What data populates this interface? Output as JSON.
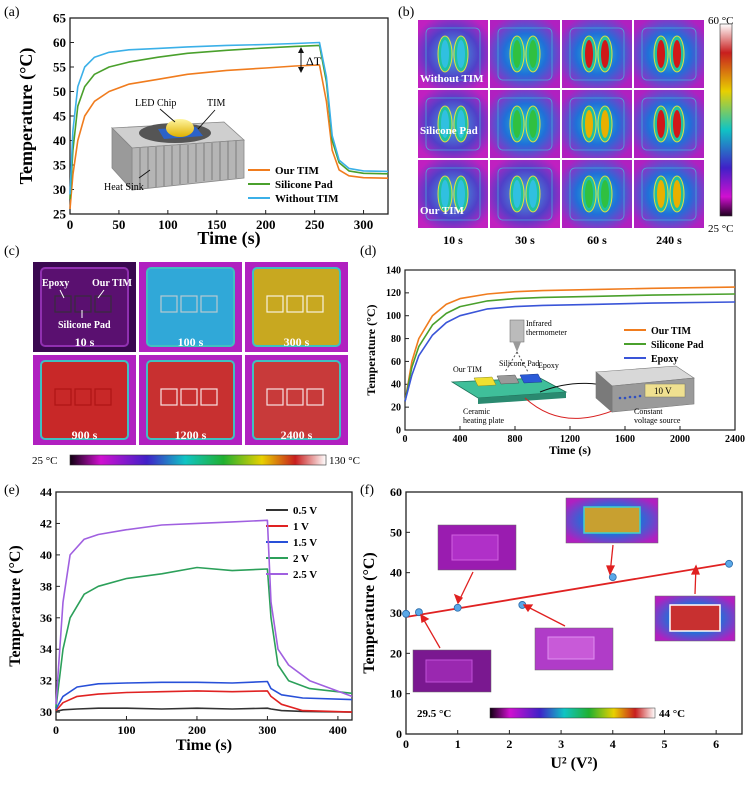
{
  "figure": {
    "panels": {
      "a": {
        "letter": "(a)"
      },
      "b": {
        "letter": "(b)"
      },
      "c": {
        "letter": "(c)"
      },
      "d": {
        "letter": "(d)"
      },
      "e": {
        "letter": "(e)"
      },
      "f": {
        "letter": "(f)"
      }
    },
    "annotations": {
      "a_delta_t": "ΔT",
      "a_led_chip": "LED Chip",
      "a_tim": "TIM",
      "a_heat_sink": "Heat Sink",
      "b_row_labels": [
        "Without TIM",
        "Silicone Pad",
        "Our TIM"
      ],
      "b_times": [
        "10 s",
        "30 s",
        "60 s",
        "240 s"
      ],
      "b_colorbar_max": "60 °C",
      "b_colorbar_min": "25 °C",
      "c_epoxy": "Epoxy",
      "c_our_tim": "Our TIM",
      "c_silicone_pad": "Silicone Pad",
      "c_times": [
        "10 s",
        "100 s",
        "300 s",
        "900 s",
        "1200 s",
        "2400 s"
      ],
      "c_colorbar_min": "25 °C",
      "c_colorbar_max": "130 °C",
      "d_infrared": "Infrared",
      "d_thermometer": "thermometer",
      "d_silicone_pad": "Silicone Pad",
      "d_epoxy": "Epoxy",
      "d_our_tim": "Our TIM",
      "d_ceramic": "Ceramic",
      "d_heating_plate": "heating plate",
      "d_voltage": "10 V",
      "d_constant": "Constant",
      "d_voltage_source": "voltage source",
      "f_colorbar_min": "29.5 °C",
      "f_colorbar_max": "44 °C"
    }
  },
  "chart_data": [
    {
      "id": "a",
      "type": "line",
      "xlabel": "Time (s)",
      "ylabel": "Temperature (°C)",
      "xlim": [
        0,
        325
      ],
      "ylim": [
        25,
        65
      ],
      "xticks": [
        0,
        50,
        100,
        150,
        200,
        250,
        300
      ],
      "yticks": [
        25,
        30,
        35,
        40,
        45,
        50,
        55,
        60,
        65
      ],
      "legend": "bottom-right",
      "series": [
        {
          "name": "Our TIM",
          "color": "#f07c1e",
          "x": [
            0,
            3,
            8,
            15,
            25,
            40,
            60,
            90,
            120,
            160,
            200,
            230,
            255,
            262,
            268,
            275,
            285,
            300,
            325
          ],
          "y": [
            26,
            33,
            40,
            45,
            48,
            50,
            51.5,
            52.5,
            53.5,
            54.3,
            54.8,
            55.2,
            55.4,
            48,
            38,
            34,
            32.8,
            32.4,
            32.3
          ]
        },
        {
          "name": "Silicone Pad",
          "color": "#4aa02c",
          "x": [
            0,
            3,
            8,
            15,
            25,
            40,
            60,
            90,
            120,
            160,
            200,
            230,
            255,
            262,
            268,
            275,
            285,
            300,
            325
          ],
          "y": [
            28,
            38,
            47,
            51,
            53.5,
            55,
            56,
            57,
            57.8,
            58.4,
            58.9,
            59.2,
            59.4,
            52,
            40,
            35.5,
            33.8,
            33.3,
            33.2
          ]
        },
        {
          "name": "Without TIM",
          "color": "#3bb0e8",
          "x": [
            0,
            3,
            8,
            15,
            25,
            40,
            60,
            90,
            120,
            160,
            200,
            230,
            255,
            262,
            268,
            275,
            285,
            300,
            325
          ],
          "y": [
            29,
            42,
            51,
            55,
            57,
            58,
            58.5,
            58.8,
            59.1,
            59.4,
            59.6,
            59.8,
            60,
            53,
            41,
            36,
            34.3,
            33.8,
            33.7
          ]
        }
      ]
    },
    {
      "id": "d",
      "type": "line",
      "xlabel": "Time (s)",
      "ylabel": "Temperature (°C)",
      "xlim": [
        0,
        2400
      ],
      "ylim": [
        0,
        140
      ],
      "xticks": [
        0,
        400,
        800,
        1200,
        1600,
        2000,
        2400
      ],
      "yticks": [
        0,
        20,
        40,
        60,
        80,
        100,
        120,
        140
      ],
      "legend": "middle-right",
      "series": [
        {
          "name": "Our TIM",
          "color": "#f07c1e",
          "x": [
            0,
            50,
            100,
            200,
            300,
            400,
            600,
            800,
            1000,
            1400,
            1800,
            2400
          ],
          "y": [
            25,
            60,
            80,
            100,
            110,
            115,
            119,
            121,
            122,
            123,
            124,
            125
          ]
        },
        {
          "name": "Silicone Pad",
          "color": "#4aa02c",
          "x": [
            0,
            50,
            100,
            200,
            300,
            400,
            600,
            800,
            1000,
            1400,
            1800,
            2400
          ],
          "y": [
            25,
            55,
            73,
            92,
            102,
            108,
            113,
            115,
            116,
            117,
            118,
            119
          ]
        },
        {
          "name": "Epoxy",
          "color": "#3a55d8",
          "x": [
            0,
            50,
            100,
            200,
            300,
            400,
            600,
            800,
            1000,
            1400,
            1800,
            2400
          ],
          "y": [
            25,
            48,
            65,
            83,
            94,
            100,
            106,
            108,
            109,
            110,
            111,
            112
          ]
        }
      ]
    },
    {
      "id": "e",
      "type": "line",
      "xlabel": "Time (s)",
      "ylabel": "Temperature (°C)",
      "xlim": [
        0,
        420
      ],
      "ylim": [
        29.5,
        44
      ],
      "xticks": [
        0,
        100,
        200,
        300,
        400
      ],
      "yticks": [
        30,
        32,
        34,
        36,
        38,
        40,
        42,
        44
      ],
      "legend": "top-right",
      "series": [
        {
          "name": "0.5 V",
          "color": "#333333",
          "x": [
            0,
            10,
            30,
            60,
            100,
            150,
            200,
            250,
            300,
            305,
            320,
            350,
            420
          ],
          "y": [
            30.05,
            30.15,
            30.2,
            30.25,
            30.25,
            30.2,
            30.25,
            30.2,
            30.25,
            30.2,
            30.1,
            30.05,
            30
          ]
        },
        {
          "name": "1 V",
          "color": "#e02222",
          "x": [
            0,
            10,
            30,
            60,
            100,
            150,
            200,
            250,
            300,
            305,
            320,
            350,
            420
          ],
          "y": [
            30.1,
            30.6,
            31,
            31.15,
            31.25,
            31.3,
            31.35,
            31.3,
            31.35,
            31.0,
            30.5,
            30.1,
            30.0
          ]
        },
        {
          "name": "1.5 V",
          "color": "#2850d8",
          "x": [
            0,
            10,
            30,
            60,
            100,
            150,
            200,
            250,
            300,
            305,
            320,
            350,
            420
          ],
          "y": [
            30.2,
            31.0,
            31.6,
            31.8,
            31.85,
            31.9,
            31.9,
            31.85,
            31.95,
            31.5,
            31.1,
            30.9,
            30.8
          ]
        },
        {
          "name": "2 V",
          "color": "#2ca05a",
          "x": [
            0,
            10,
            20,
            40,
            60,
            100,
            150,
            200,
            250,
            300,
            305,
            315,
            330,
            360,
            420
          ],
          "y": [
            30.3,
            34.0,
            36.0,
            37.5,
            38.0,
            38.5,
            38.8,
            39.2,
            39.0,
            39.1,
            36.0,
            33.0,
            32.0,
            31.5,
            31.2
          ]
        },
        {
          "name": "2.5 V",
          "color": "#a060e0",
          "x": [
            0,
            10,
            20,
            40,
            60,
            100,
            150,
            200,
            250,
            300,
            305,
            315,
            330,
            360,
            420
          ],
          "y": [
            30.5,
            37.0,
            40.0,
            41.0,
            41.3,
            41.6,
            41.9,
            42.0,
            42.1,
            42.2,
            37.0,
            34.0,
            33.0,
            32.0,
            31.0
          ]
        }
      ]
    },
    {
      "id": "f",
      "type": "scatter",
      "xlabel": "U² (V²)",
      "ylabel": "Temperature (°C)",
      "xlim": [
        0,
        6.5
      ],
      "ylim": [
        0,
        60
      ],
      "xticks": [
        0,
        1,
        2,
        3,
        4,
        5,
        6
      ],
      "yticks": [
        0,
        10,
        20,
        30,
        40,
        50,
        60
      ],
      "points": {
        "x": [
          0,
          0.25,
          1,
          2.25,
          4,
          6.25
        ],
        "y": [
          29.8,
          30.2,
          31.3,
          32.0,
          38.9,
          42.2
        ]
      },
      "fit": {
        "x": [
          0,
          6.25
        ],
        "y": [
          29.0,
          42.3
        ],
        "color": "#e02222"
      }
    }
  ]
}
